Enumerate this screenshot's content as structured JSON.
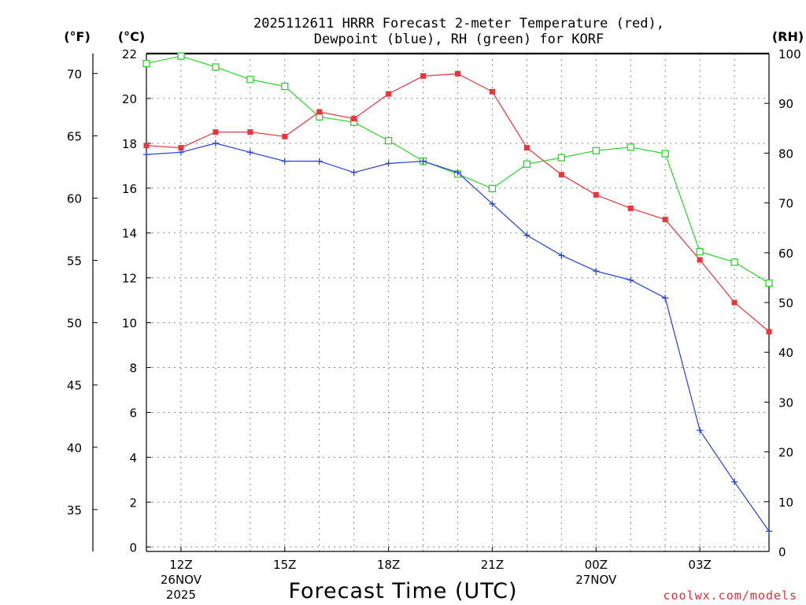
{
  "chart_data": {
    "type": "line",
    "title_line1": "2025112611 HRRR Forecast 2-meter Temperature (red),",
    "title_line2": "Dewpoint (blue), RH (green) for KORF",
    "xlabel": "Forecast Time (UTC)",
    "units": {
      "fahrenheit": "(°F)",
      "celsius": "(°C)",
      "rh": "(RH)"
    },
    "x_hours": [
      11,
      12,
      13,
      14,
      15,
      16,
      17,
      18,
      19,
      20,
      21,
      22,
      23,
      24,
      25,
      26,
      27,
      28,
      29
    ],
    "x_range": [
      11,
      29
    ],
    "x_ticks": [
      {
        "hour": 12,
        "label": "12Z",
        "sub1": "26NOV",
        "sub2": "2025"
      },
      {
        "hour": 15,
        "label": "15Z",
        "sub1": "",
        "sub2": ""
      },
      {
        "hour": 18,
        "label": "18Z",
        "sub1": "",
        "sub2": ""
      },
      {
        "hour": 21,
        "label": "21Z",
        "sub1": "",
        "sub2": ""
      },
      {
        "hour": 24,
        "label": "00Z",
        "sub1": "27NOV",
        "sub2": ""
      },
      {
        "hour": 27,
        "label": "03Z",
        "sub1": "",
        "sub2": ""
      }
    ],
    "celsius_range": [
      -0.2,
      22.0
    ],
    "celsius_ticks": [
      "0",
      "2",
      "4",
      "6",
      "8",
      "10",
      "12",
      "14",
      "16",
      "18",
      "20",
      "22"
    ],
    "fahrenheit_ticks": [
      "35",
      "40",
      "45",
      "50",
      "55",
      "60",
      "65",
      "70"
    ],
    "rh_ticks": [
      "0",
      "10",
      "20",
      "30",
      "40",
      "50",
      "60",
      "70",
      "80",
      "90",
      "100"
    ],
    "series": [
      {
        "name": "Temperature",
        "unit": "C",
        "color": "#e8363c",
        "marker": "filled-square",
        "values": [
          17.9,
          17.8,
          18.5,
          18.5,
          18.3,
          19.4,
          19.1,
          20.2,
          21.0,
          21.1,
          20.3,
          17.8,
          16.6,
          15.7,
          15.1,
          14.6,
          12.8,
          10.9,
          9.6
        ]
      },
      {
        "name": "Dewpoint",
        "unit": "C",
        "color": "#2440e0",
        "marker": "plus",
        "values": [
          17.5,
          17.6,
          18.0,
          17.6,
          17.2,
          17.2,
          16.7,
          17.1,
          17.2,
          16.7,
          15.3,
          13.9,
          13.0,
          12.3,
          11.9,
          11.1,
          5.2,
          2.9,
          0.7
        ]
      },
      {
        "name": "RH",
        "unit": "%",
        "color": "#2bd42b",
        "marker": "open-square",
        "values": [
          98,
          99.5,
          97.3,
          94.8,
          93.4,
          87.3,
          86.2,
          82.5,
          78.4,
          75.8,
          72.9,
          77.8,
          79.1,
          80.5,
          81.2,
          79.9,
          60.2,
          58.1,
          53.9
        ]
      }
    ],
    "credit": "coolwx.com/models"
  }
}
